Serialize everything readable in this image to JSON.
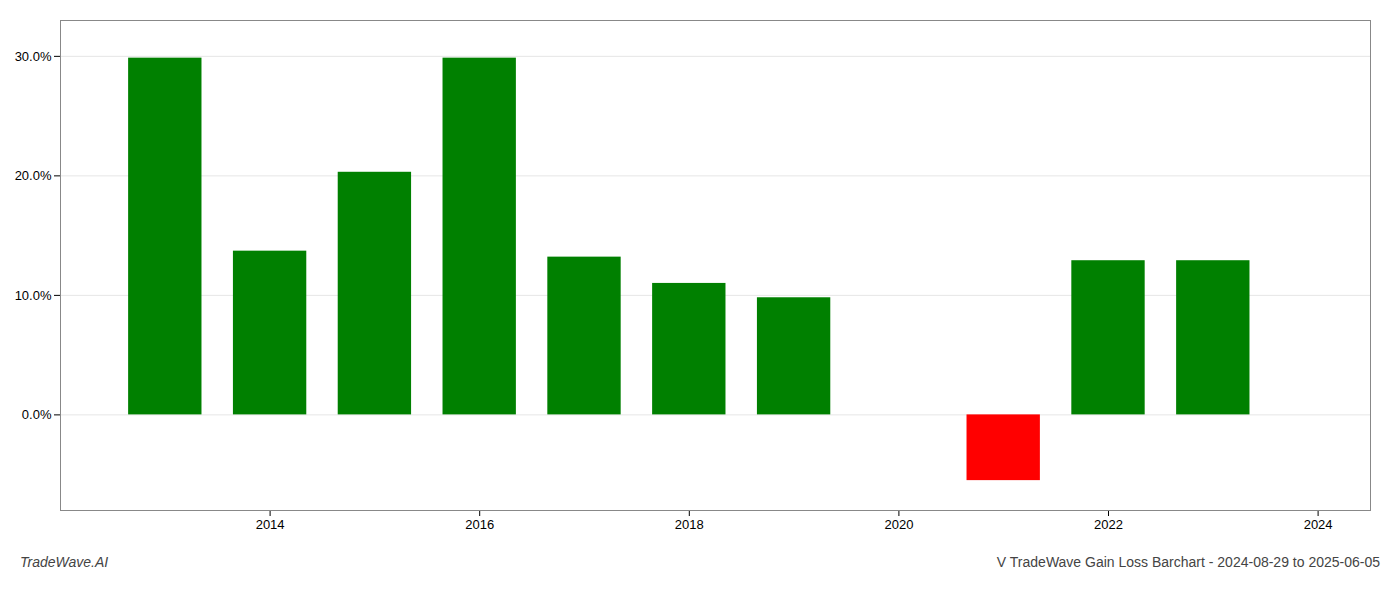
{
  "chart_data": {
    "type": "bar",
    "x": [
      2013,
      2014,
      2015,
      2016,
      2017,
      2018,
      2019,
      2021,
      2022,
      2023
    ],
    "values": [
      29.85,
      13.7,
      20.3,
      29.85,
      13.2,
      11.0,
      9.8,
      -5.5,
      12.9,
      12.9
    ],
    "colors": [
      "#008000",
      "#008000",
      "#008000",
      "#008000",
      "#008000",
      "#008000",
      "#008000",
      "#ff0000",
      "#008000",
      "#008000"
    ],
    "xlim": [
      2012.0,
      2024.5
    ],
    "xticks": [
      2014,
      2016,
      2018,
      2020,
      2022,
      2024
    ],
    "ylim": [
      -8.0,
      33.0
    ],
    "yticks": [
      {
        "value": 0.0,
        "label": "0.0%"
      },
      {
        "value": 10.0,
        "label": "10.0%"
      },
      {
        "value": 20.0,
        "label": "20.0%"
      },
      {
        "value": 30.0,
        "label": "30.0%"
      }
    ],
    "grid": true,
    "annotations": [
      "TradeWave.AI",
      "V TradeWave Gain Loss Barchart - 2024-08-29 to 2025-06-05"
    ]
  }
}
